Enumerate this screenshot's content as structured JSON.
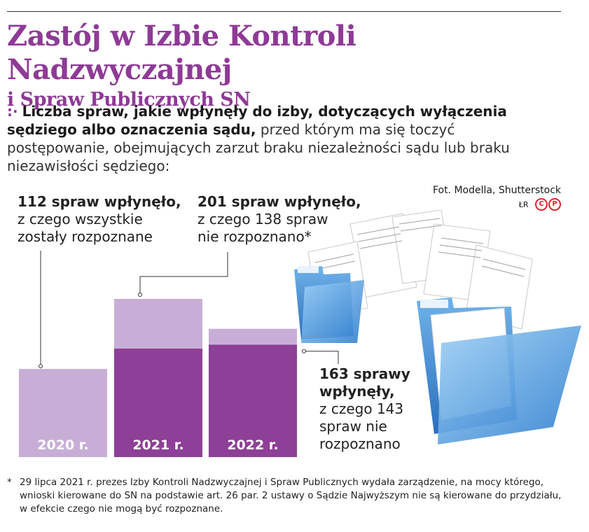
{
  "title": {
    "line1": "Zastój w Izbie Kontroli Nadzwyczajnej",
    "line2": "i Spraw Publicznych SN"
  },
  "lead": {
    "marker": ":·",
    "bold": "Liczba spraw, jakie wpłynęły do izby, dotyczących wyłączenia sędziego albo oznaczenia sądu,",
    "rest": " przed którym ma się toczyć postępowanie, obejmujących zarzut braku niezależności sądu lub braku niezawisłości sędziego:"
  },
  "credit": {
    "photo": "Fot. Modella, Shutterstock",
    "signature": "ŁR",
    "cp": "CP"
  },
  "chart_data": {
    "type": "bar",
    "stacked": true,
    "categories": [
      "2020 r.",
      "2021 r.",
      "2022 r."
    ],
    "series": [
      {
        "name": "nie rozpoznano",
        "values": [
          0,
          138,
          143
        ],
        "color": "#8e3f97"
      },
      {
        "name": "rozpoznane",
        "values": [
          112,
          63,
          20
        ],
        "color": "#c8aed6"
      }
    ],
    "totals": [
      112,
      201,
      163
    ],
    "annotations": [
      {
        "bold": "112 spraw wpłynęło,",
        "lines": [
          "z czego wszystkie",
          "zostały rozpoznane"
        ]
      },
      {
        "bold": "201 spraw wpłynęło,",
        "lines": [
          "z czego 138 spraw",
          "nie rozpoznano*"
        ]
      },
      {
        "bold": "163 sprawy",
        "bold2": "wpłynęły,",
        "lines": [
          "z czego 143",
          "spraw nie",
          "rozpoznano"
        ]
      }
    ],
    "ylim": [
      0,
      201
    ]
  },
  "footnote": {
    "star": "*",
    "text": "29 lipca 2021 r. prezes Izby Kontroli Nadzwyczajnej i Spraw Publicznych wydała zarządzenie, na mocy którego, wnioski kierowane do SN na podstawie art. 26 par. 2 ustawy o Sądzie Najwyższym nie są kierowane do przydziału, w efekcie czego nie mogą być rozpoznane."
  },
  "colors": {
    "accent": "#8e3a96",
    "bar_dark": "#8e3f97",
    "bar_light": "#c8aed6",
    "folder_blue": "#3a8fd9"
  },
  "icons": [
    "document-folder-illustration",
    "copyright-icon"
  ]
}
